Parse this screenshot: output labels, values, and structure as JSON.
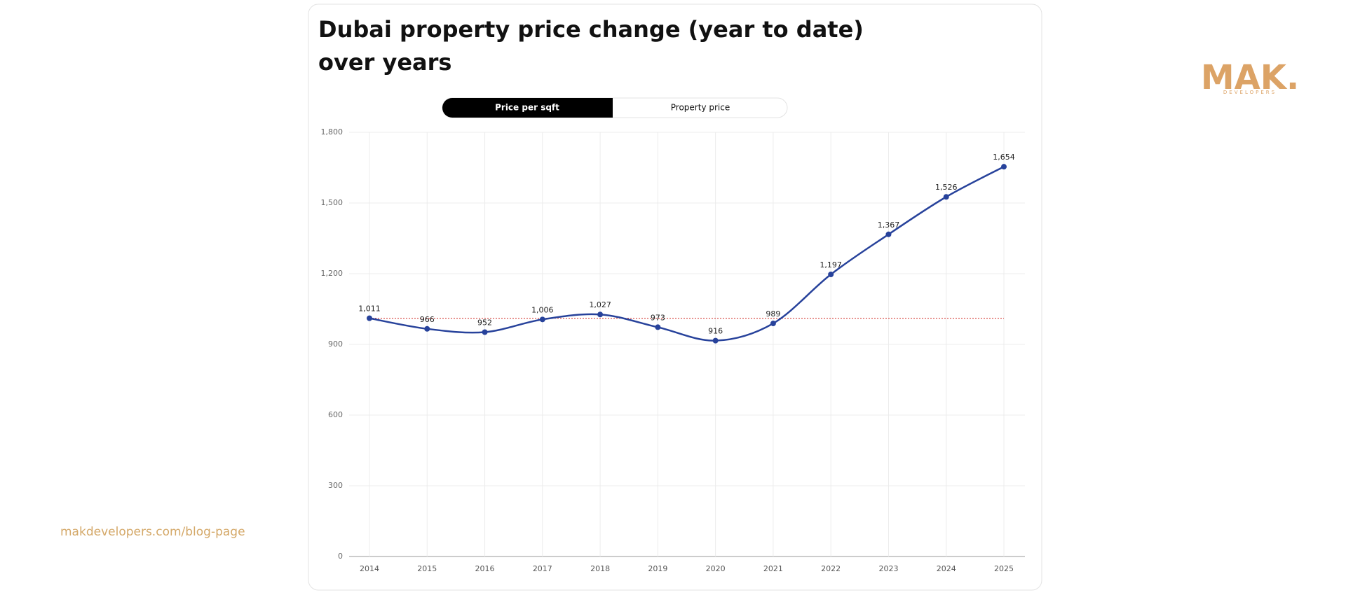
{
  "chart_data": {
    "type": "line",
    "title": "Dubai property price change (year to date)",
    "subtitle": "over years",
    "categories": [
      "2014",
      "2015",
      "2016",
      "2017",
      "2018",
      "2019",
      "2020",
      "2021",
      "2022",
      "2023",
      "2024",
      "2025"
    ],
    "series": [
      {
        "color": "#27429b",
        "values": [
          1011,
          966,
          952,
          1006,
          1027,
          973,
          916,
          989,
          1197,
          1367,
          1526,
          1654
        ],
        "value_labels": [
          "1,011",
          "966",
          "952",
          "1,006",
          "1,027",
          "973",
          "916",
          "989",
          "1,197",
          "1,367",
          "1,526",
          "1,654"
        ]
      }
    ],
    "reference_line": {
      "value": 1011,
      "color": "#d9534f"
    },
    "ylim": [
      0,
      1800
    ],
    "yticks": [
      0,
      300,
      600,
      900,
      {
        "value": 1200,
        "label": "1,200"
      },
      {
        "value": 1500,
        "label": "1,500"
      },
      {
        "value": 1800,
        "label": "1,800"
      }
    ],
    "grid": true
  },
  "toggle": {
    "options": [
      "Price per sqft",
      "Property price"
    ]
  },
  "logo": {
    "mark": "MAK.",
    "sub": "DEVELOPERS"
  },
  "footer": {
    "link": "makdevelopers.com/blog-page"
  }
}
